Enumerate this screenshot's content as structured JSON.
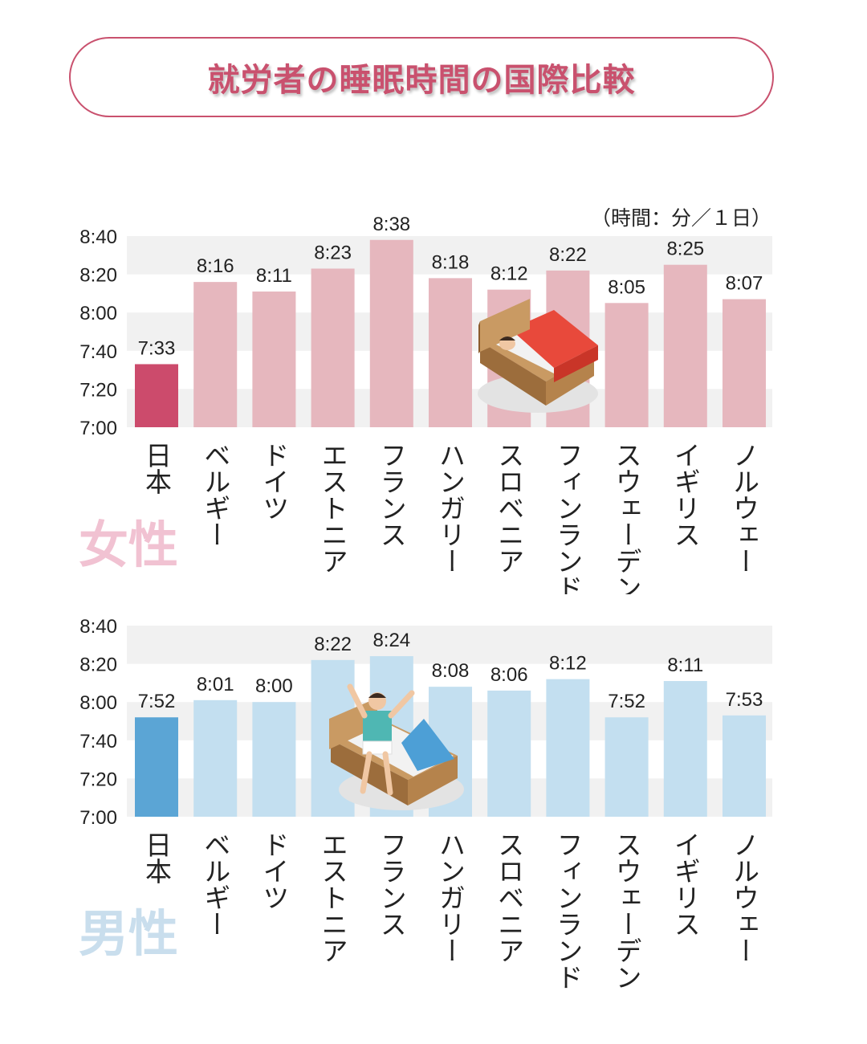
{
  "title": "就労者の睡眠時間の国際比較",
  "unit": "（時間：分／１日）",
  "female": {
    "label": "女性",
    "chart_data": {
      "type": "bar",
      "categories": [
        "日本",
        "ベルギー",
        "ドイツ",
        "エストニア",
        "フランス",
        "ハンガリー",
        "スロベニア",
        "フィンランド",
        "スウェーデン",
        "イギリス",
        "ノルウェー"
      ],
      "values": [
        "7:33",
        "8:16",
        "8:11",
        "8:23",
        "8:38",
        "8:18",
        "8:12",
        "8:22",
        "8:05",
        "8:25",
        "8:07"
      ],
      "minutes": [
        453,
        496,
        491,
        503,
        518,
        498,
        492,
        502,
        485,
        505,
        487
      ],
      "ytick_labels": [
        "7:00",
        "7:20",
        "7:40",
        "8:00",
        "8:20",
        "8:40"
      ],
      "yticks": [
        420,
        440,
        460,
        480,
        500,
        520
      ],
      "ylim": [
        420,
        520
      ],
      "highlight_index": 0,
      "highlight_color": "#cc4b6c",
      "bar_color": "#e6b7be"
    }
  },
  "male": {
    "label": "男性",
    "chart_data": {
      "type": "bar",
      "categories": [
        "日本",
        "ベルギー",
        "ドイツ",
        "エストニア",
        "フランス",
        "ハンガリー",
        "スロベニア",
        "フィンランド",
        "スウェーデン",
        "イギリス",
        "ノルウェー"
      ],
      "values": [
        "7:52",
        "8:01",
        "8:00",
        "8:22",
        "8:24",
        "8:08",
        "8:06",
        "8:12",
        "7:52",
        "8:11",
        "7:53"
      ],
      "minutes": [
        472,
        481,
        480,
        502,
        504,
        488,
        486,
        492,
        472,
        491,
        473
      ],
      "ytick_labels": [
        "7:00",
        "7:20",
        "7:40",
        "8:00",
        "8:20",
        "8:40"
      ],
      "yticks": [
        420,
        440,
        460,
        480,
        500,
        520
      ],
      "ylim": [
        420,
        520
      ],
      "highlight_index": 0,
      "highlight_color": "#5ba5d5",
      "bar_color": "#c3dff0"
    }
  }
}
